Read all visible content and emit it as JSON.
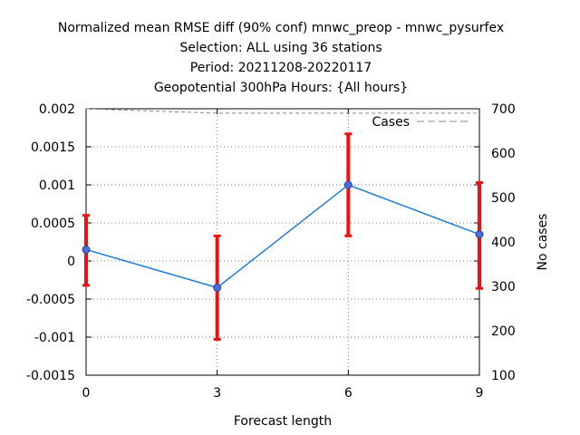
{
  "chart_data": {
    "type": "line",
    "title": [
      "Normalized mean RMSE diff (90% conf) mnwc_preop - mnwc_pysurfex",
      "Selection: ALL using    36 stations",
      "Period: 20211208-20220117",
      "Geopotential 300hPa   Hours: {All hours}"
    ],
    "xlabel": "Forecast length",
    "ylabel": "",
    "y2label": "No cases",
    "x_ticks": [
      "0",
      "3",
      "6",
      "9"
    ],
    "xlim": [
      0,
      9
    ],
    "ylim": [
      -0.0015,
      0.002
    ],
    "y_ticks": [
      "-0.0015",
      "-0.001",
      "-0.0005",
      "0",
      "0.0005",
      "0.001",
      "0.0015",
      "0.002"
    ],
    "y2lim": [
      100,
      700
    ],
    "y2_ticks": [
      "100",
      "200",
      "300",
      "400",
      "500",
      "600",
      "700"
    ],
    "grid": true,
    "series": [
      {
        "name": "",
        "color": "#1f7fd9",
        "x": [
          0,
          3,
          6,
          9
        ],
        "values": [
          0.00015,
          -0.00035,
          0.001,
          0.00035
        ],
        "err_low": [
          -0.00032,
          -0.00103,
          0.00033,
          -0.00036
        ],
        "err_high": [
          0.0006,
          0.00033,
          0.00167,
          0.00103
        ],
        "err_color": "#ee1111"
      },
      {
        "name": "Cases",
        "axis": "right",
        "color": "#888888",
        "dash": true,
        "x": [
          0,
          3,
          6,
          9
        ],
        "values": [
          700,
          690,
          690,
          690
        ]
      }
    ],
    "legend": {
      "position": "top-right",
      "entries": [
        "Cases"
      ]
    }
  }
}
